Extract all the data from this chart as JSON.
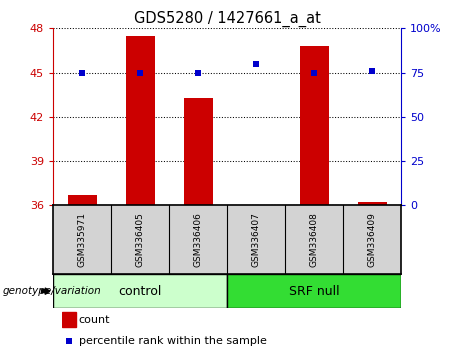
{
  "title": "GDS5280 / 1427661_a_at",
  "samples": [
    "GSM335971",
    "GSM336405",
    "GSM336406",
    "GSM336407",
    "GSM336408",
    "GSM336409"
  ],
  "count_values": [
    36.7,
    47.5,
    43.3,
    36.0,
    46.8,
    36.2
  ],
  "percentile_values": [
    75,
    75,
    75,
    80,
    75,
    76
  ],
  "left_ylim": [
    36,
    48
  ],
  "left_yticks": [
    36,
    39,
    42,
    45,
    48
  ],
  "right_ylim": [
    0,
    100
  ],
  "right_yticks": [
    0,
    25,
    50,
    75,
    100
  ],
  "right_yticklabels": [
    "0",
    "25",
    "50",
    "75",
    "100%"
  ],
  "bar_color": "#cc0000",
  "scatter_color": "#0000cc",
  "bar_width": 0.5,
  "groups": [
    {
      "label": "control",
      "indices": [
        0,
        1,
        2
      ],
      "color": "#ccffcc"
    },
    {
      "label": "SRF null",
      "indices": [
        3,
        4,
        5
      ],
      "color": "#33dd33"
    }
  ],
  "group_label": "genotype/variation",
  "legend_count_label": "count",
  "legend_percentile_label": "percentile rank within the sample",
  "plot_bg": "#ffffff",
  "tick_label_color_left": "#cc0000",
  "tick_label_color_right": "#0000cc",
  "sample_box_color": "#d3d3d3",
  "grid_color": "#000000"
}
